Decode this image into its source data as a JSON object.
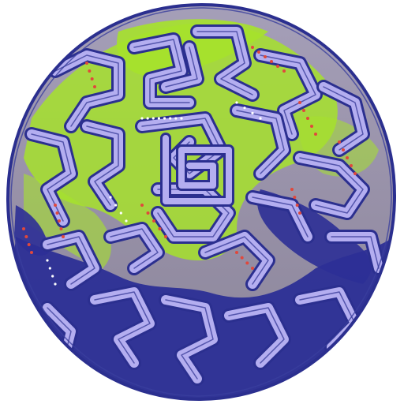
{
  "image": {
    "subject": "maze-sphere",
    "colors": {
      "background": "#ffffff",
      "outline": "#2b2f8f",
      "base_gray": "#9a95a8",
      "lavender": "#b4aef0",
      "lime": "#a6e22b",
      "deep_blue": "#2c2f96",
      "dot_red": "#e0483c"
    }
  }
}
